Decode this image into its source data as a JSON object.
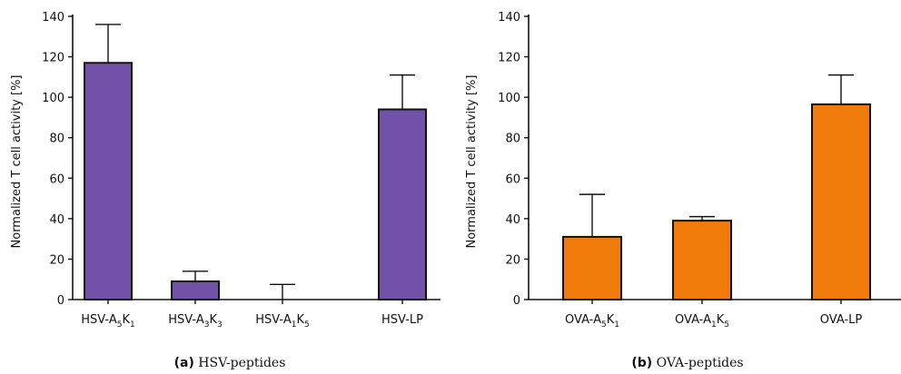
{
  "chart_data": [
    {
      "type": "bar",
      "ylabel": "Normalized T cell activity [%]",
      "ylim": [
        0,
        140
      ],
      "yticks": [
        0,
        20,
        40,
        60,
        80,
        100,
        120,
        140
      ],
      "categories": [
        {
          "base": "HSV-A",
          "sub1": "5",
          "mid": "K",
          "sub2": "1"
        },
        {
          "base": "HSV-A",
          "sub1": "3",
          "mid": "K",
          "sub2": "3"
        },
        {
          "base": "HSV-A",
          "sub1": "1",
          "mid": "K",
          "sub2": "5"
        },
        {
          "base": "HSV-LP",
          "sub1": "",
          "mid": "",
          "sub2": ""
        }
      ],
      "values": [
        117,
        9,
        0,
        94
      ],
      "errors": [
        19,
        5,
        7.5,
        17
      ],
      "color": "#7251a9",
      "caption_letter": "(a)",
      "caption_text": "HSV-peptides"
    },
    {
      "type": "bar",
      "ylabel": "Normalized T cell activity [%]",
      "ylim": [
        0,
        140
      ],
      "yticks": [
        0,
        20,
        40,
        60,
        80,
        100,
        120,
        140
      ],
      "categories": [
        {
          "base": "OVA-A",
          "sub1": "5",
          "mid": "K",
          "sub2": "1"
        },
        {
          "base": "OVA-A",
          "sub1": "1",
          "mid": "K",
          "sub2": "5"
        },
        {
          "base": "OVA-LP",
          "sub1": "",
          "mid": "",
          "sub2": ""
        }
      ],
      "values": [
        31,
        39,
        96.5
      ],
      "errors": [
        21,
        2,
        14.5
      ],
      "color": "#f07b0b",
      "caption_letter": "(b)",
      "caption_text": "OVA-peptides"
    }
  ]
}
